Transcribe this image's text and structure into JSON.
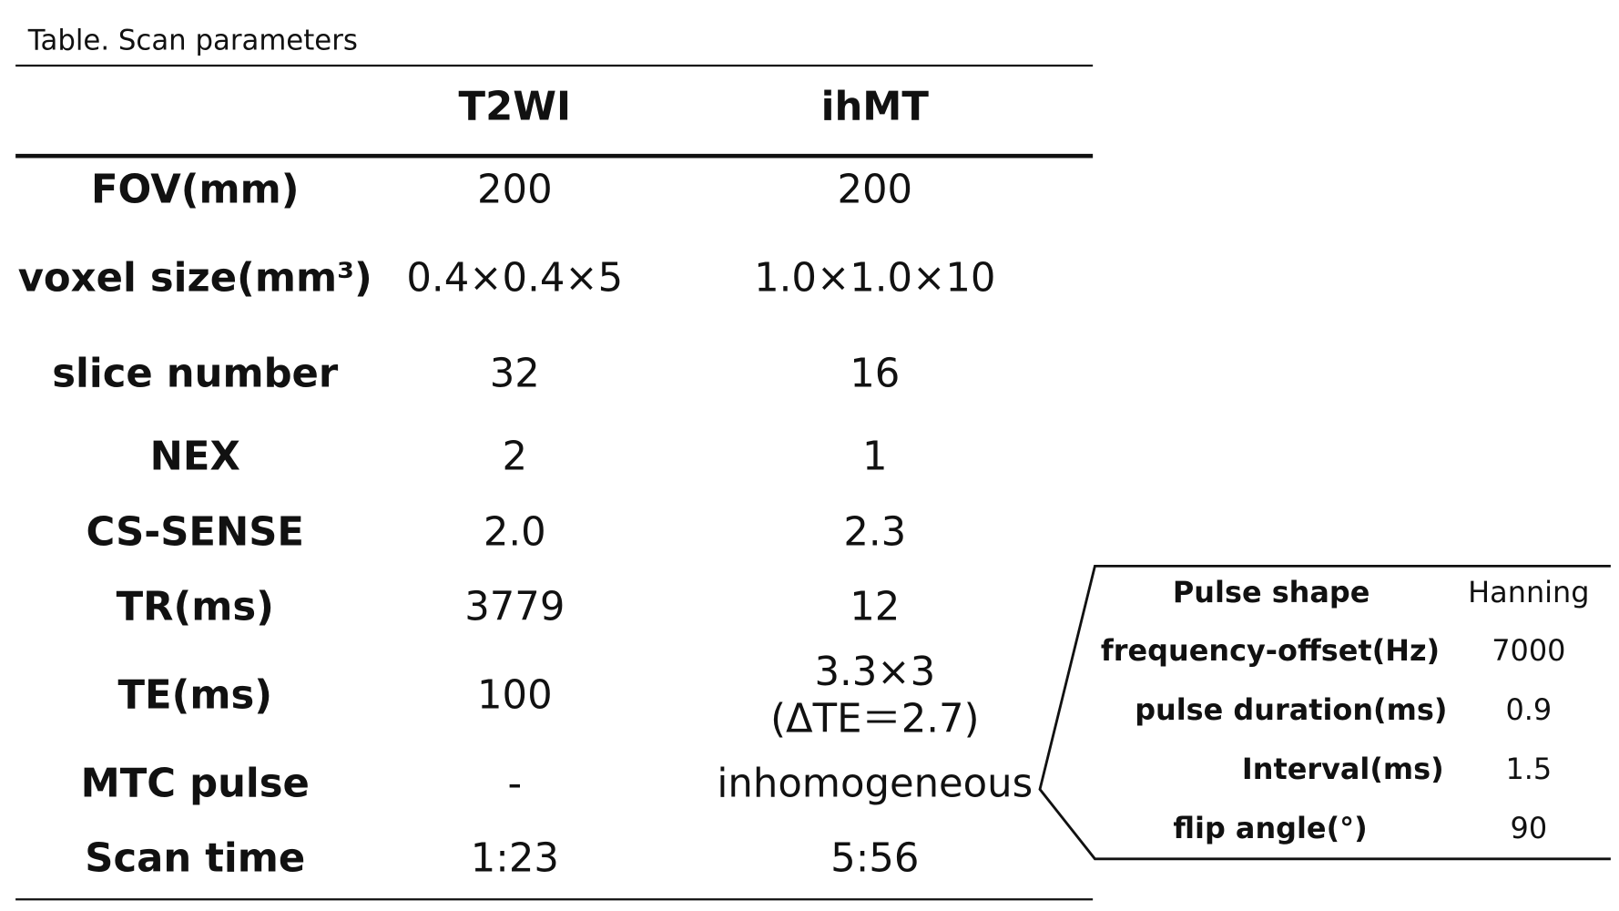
{
  "caption": "Table. Scan parameters",
  "table": {
    "columns": [
      "T2WI",
      "ihMT"
    ],
    "rows": [
      [
        "FOV(mm)",
        "200",
        "200"
      ],
      [
        "voxel size(mm³)",
        "0.4×0.4×5",
        "1.0×1.0×10"
      ],
      [
        "slice number",
        "32",
        "16"
      ],
      [
        "NEX",
        "2",
        "1"
      ],
      [
        "CS-SENSE",
        "2.0",
        "2.3"
      ],
      [
        "TR(ms)",
        "3779",
        "12"
      ],
      [
        "TE(ms)",
        "100",
        [
          "3.3×3",
          "(ΔTE＝2.7)"
        ]
      ],
      [
        "MTC pulse",
        "-",
        "inhomogeneous"
      ],
      [
        "Scan time",
        "1:23",
        "5:56"
      ]
    ]
  },
  "pulse_table": {
    "rows": [
      [
        "Pulse shape",
        "Hanning"
      ],
      [
        "frequency-offset(Hz)",
        "7000"
      ],
      [
        "pulse duration(ms)",
        "0.9"
      ],
      [
        "Interval(ms)",
        "1.5"
      ],
      [
        "flip angle(°)",
        "90"
      ]
    ]
  }
}
